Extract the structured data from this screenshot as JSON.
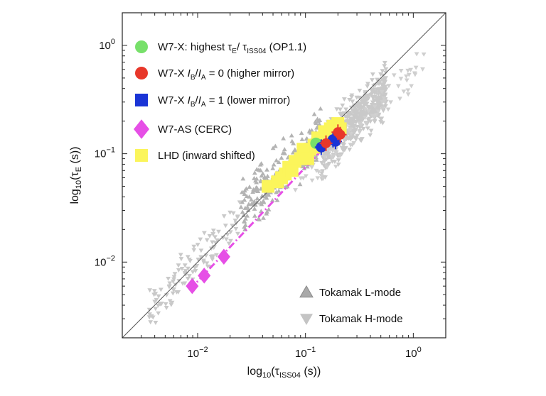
{
  "chart_data": {
    "type": "scatter",
    "xscale": "log",
    "yscale": "log",
    "xlim": [
      0.002,
      2.0
    ],
    "ylim": [
      0.002,
      2.0
    ],
    "xlabel": {
      "main": "log",
      "sub": "10",
      "open": "(τ",
      "var_sub": "ISS04",
      "close": " (s))"
    },
    "ylabel": {
      "main": "log",
      "sub": "10",
      "open": "(τ",
      "var_sub": "E",
      "close": " (s))"
    },
    "x_ticks": [
      {
        "value": 0.01,
        "base": "10",
        "exp": "−2"
      },
      {
        "value": 0.1,
        "base": "10",
        "exp": "−1"
      },
      {
        "value": 1.0,
        "base": "10",
        "exp": "0"
      }
    ],
    "y_ticks": [
      {
        "value": 0.01,
        "base": "10",
        "exp": "−2"
      },
      {
        "value": 0.1,
        "base": "10",
        "exp": "−1"
      },
      {
        "value": 1.0,
        "base": "10",
        "exp": "0"
      }
    ],
    "legend": [
      {
        "key": "w7x_best",
        "color": "#77e06a",
        "shape": "circle",
        "parts": [
          "W7-X: highest τ",
          "E",
          "/ τ",
          "ISS04",
          " (OP1.1)"
        ]
      },
      {
        "key": "w7x_high",
        "color": "#e8372a",
        "shape": "circle",
        "parts": [
          "W7-X ",
          "I",
          "B",
          "/",
          "I",
          "A",
          " = 0 (higher mirror)"
        ]
      },
      {
        "key": "w7x_low",
        "color": "#1a34d6",
        "shape": "square",
        "parts": [
          "W7-X ",
          "I",
          "B",
          "/",
          "I",
          "A",
          " = 1 (lower mirror)"
        ]
      },
      {
        "key": "w7as",
        "color": "#e64fe6",
        "shape": "diamond",
        "parts": [
          "W7-AS (CERC)"
        ]
      },
      {
        "key": "lhd",
        "color": "#fbf55b",
        "shape": "square",
        "parts": [
          "LHD (inward shifted)"
        ]
      }
    ],
    "legend2": [
      {
        "key": "tok_l",
        "color": "#a9a9a9",
        "shape": "triangle-up",
        "label": "Tokamak L-mode"
      },
      {
        "key": "tok_h",
        "color": "#c4c4c4",
        "shape": "triangle-down",
        "label": "Tokamak H-mode"
      }
    ],
    "series": [
      {
        "name": "W7-AS (CERC)",
        "key": "w7as",
        "points": [
          [
            0.0089,
            0.006
          ],
          [
            0.0115,
            0.0075
          ],
          [
            0.0175,
            0.0112
          ]
        ]
      },
      {
        "name": "LHD (inward shifted)",
        "key": "lhd",
        "points": [
          [
            0.045,
            0.05
          ],
          [
            0.055,
            0.055
          ],
          [
            0.06,
            0.06
          ],
          [
            0.065,
            0.065
          ],
          [
            0.07,
            0.075
          ],
          [
            0.08,
            0.085
          ],
          [
            0.09,
            0.09
          ],
          [
            0.1,
            0.1
          ],
          [
            0.11,
            0.11
          ],
          [
            0.12,
            0.12
          ],
          [
            0.13,
            0.14
          ],
          [
            0.15,
            0.16
          ],
          [
            0.17,
            0.17
          ],
          [
            0.18,
            0.18
          ],
          [
            0.2,
            0.19
          ],
          [
            0.21,
            0.17
          ],
          [
            0.075,
            0.07
          ],
          [
            0.095,
            0.11
          ],
          [
            0.105,
            0.09
          ],
          [
            0.125,
            0.115
          ]
        ]
      },
      {
        "name": "W7-X: highest τE/τISS04 (OP1.1)",
        "key": "w7x_best",
        "points": [
          [
            0.125,
            0.125
          ]
        ]
      },
      {
        "name": "W7-X IB/IA = 1 (lower mirror)",
        "key": "w7x_low",
        "points": [
          [
            0.14,
            0.115
          ],
          [
            0.18,
            0.135
          ],
          [
            0.19,
            0.13
          ]
        ]
      },
      {
        "name": "W7-X IB/IA = 0 (higher mirror)",
        "key": "w7x_high",
        "points": [
          [
            0.155,
            0.125
          ],
          [
            0.2,
            0.158
          ],
          [
            0.21,
            0.15
          ]
        ]
      }
    ],
    "w7as_fit_line": [
      [
        0.0085,
        0.0056
      ],
      [
        0.15,
        0.115
      ]
    ],
    "identity_line": [
      [
        0.002,
        0.002
      ],
      [
        2.0,
        2.0
      ]
    ]
  }
}
